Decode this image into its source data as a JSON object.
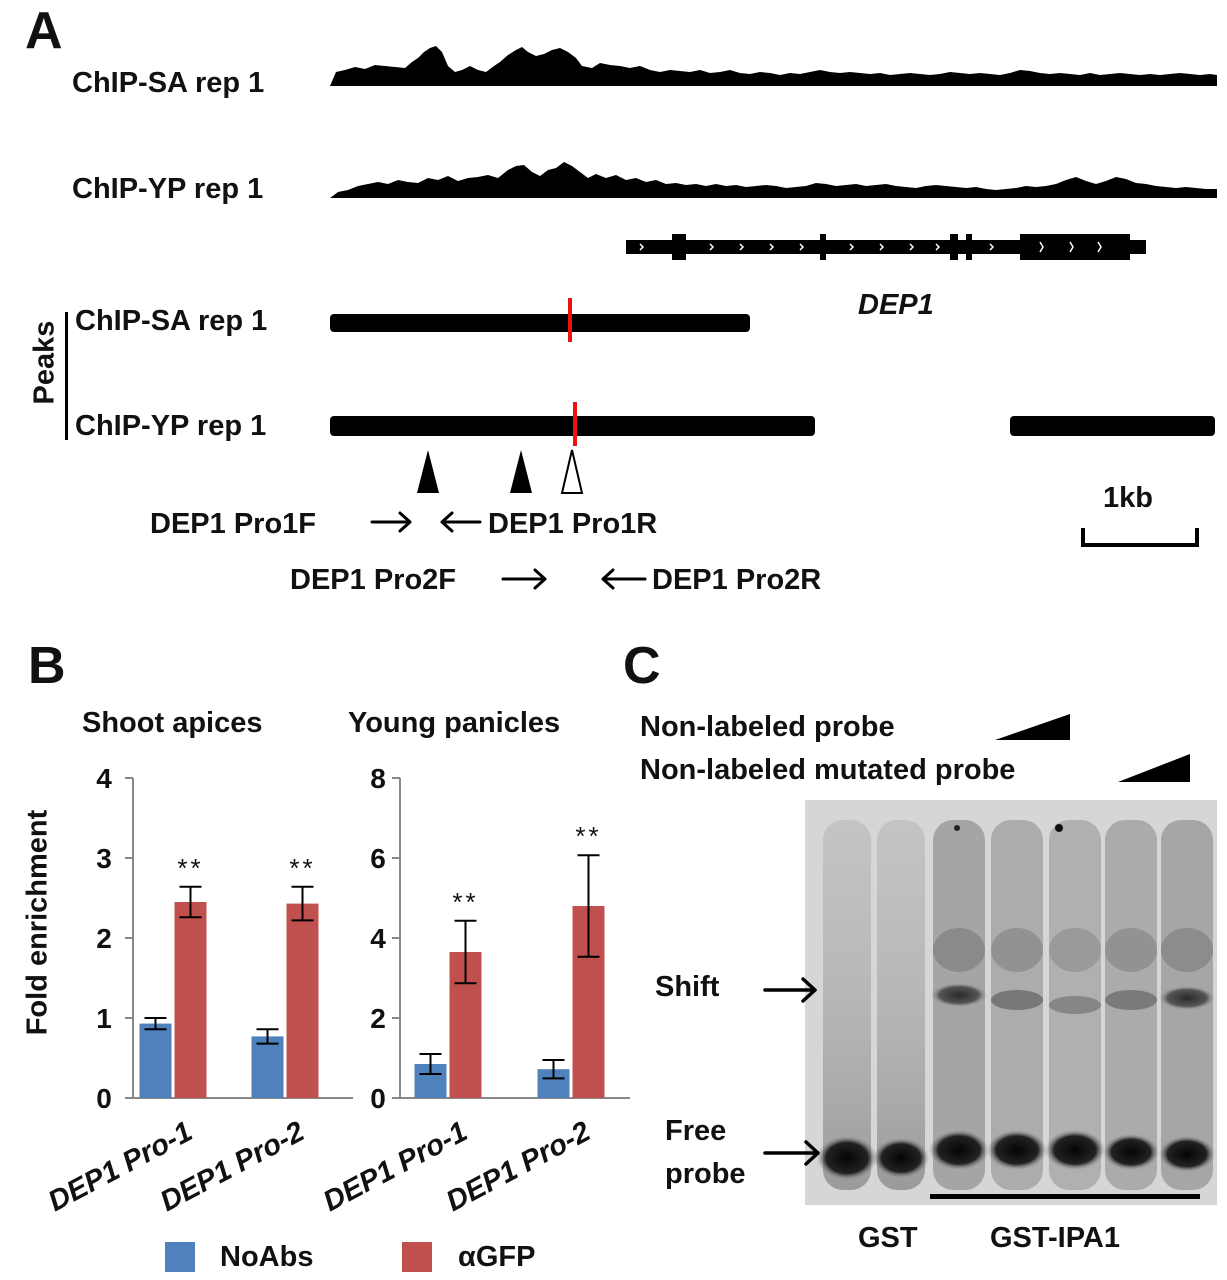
{
  "panel_a": {
    "letter": "A",
    "tracks": [
      {
        "label": "ChIP-SA rep 1"
      },
      {
        "label": "ChIP-YP rep 1"
      }
    ],
    "gene_label": "DEP1",
    "peaks_group_label": "Peaks",
    "peaks": [
      {
        "label": "ChIP-SA rep 1"
      },
      {
        "label": "ChIP-YP rep 1"
      }
    ],
    "primers": {
      "pro1f": "DEP1 Pro1F",
      "pro1r": "DEP1 Pro1R",
      "pro2f": "DEP1 Pro2F",
      "pro2r": "DEP1 Pro2R"
    },
    "scale_label": "1kb"
  },
  "panel_b": {
    "letter": "B",
    "ylabel": "Fold enrichment",
    "legend": [
      {
        "name": "NoAbs",
        "color": "#4f81bd"
      },
      {
        "name": "αGFP",
        "color": "#c0504d"
      }
    ]
  },
  "chart_data": [
    {
      "type": "bar",
      "title": "Shoot apices",
      "ylabel": "Fold enrichment",
      "categories": [
        "DEP1 Pro-1",
        "DEP1 Pro-2"
      ],
      "ylim": [
        0,
        4
      ],
      "yticks": [
        "0",
        "1",
        "2",
        "3",
        "4"
      ],
      "series": [
        {
          "name": "NoAbs",
          "color": "#4f81bd",
          "values": [
            0.93,
            0.77
          ],
          "errors": [
            0.07,
            0.09
          ]
        },
        {
          "name": "αGFP",
          "color": "#c0504d",
          "values": [
            2.45,
            2.43
          ],
          "errors": [
            0.19,
            0.21
          ]
        }
      ],
      "significance": [
        "**",
        "**"
      ]
    },
    {
      "type": "bar",
      "title": "Young panicles",
      "ylabel": "Fold enrichment",
      "categories": [
        "DEP1 Pro-1",
        "DEP1 Pro-2"
      ],
      "ylim": [
        0,
        8
      ],
      "yticks": [
        "0",
        "2",
        "4",
        "6",
        "8"
      ],
      "series": [
        {
          "name": "NoAbs",
          "color": "#4f81bd",
          "values": [
            0.85,
            0.72
          ],
          "errors": [
            0.25,
            0.23
          ]
        },
        {
          "name": "αGFP",
          "color": "#c0504d",
          "values": [
            3.65,
            4.8
          ],
          "errors": [
            0.78,
            1.27
          ]
        }
      ],
      "significance": [
        "**",
        "**"
      ]
    }
  ],
  "panel_c": {
    "letter": "C",
    "competitor_labels": [
      "Non-labeled probe",
      "Non-labeled mutated probe"
    ],
    "shift_label": "Shift",
    "free_probe_label": [
      "Free",
      "probe"
    ],
    "lane_groups": [
      "GST",
      "GST-IPA1"
    ]
  }
}
